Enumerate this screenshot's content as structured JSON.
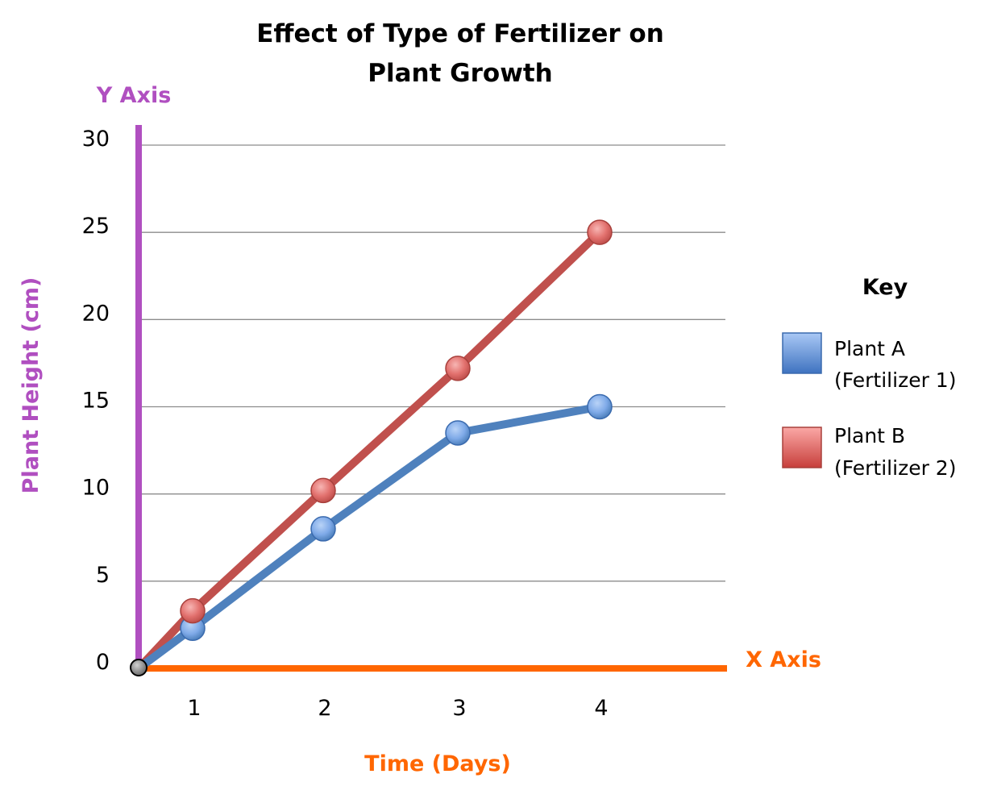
{
  "chart_data": {
    "type": "line",
    "title_lines": [
      "Effect of Type of Fertilizer on",
      "Plant Growth"
    ],
    "y_axis_name": "Y Axis",
    "x_axis_name": "X Axis",
    "ylabel": "Plant Height (cm)",
    "xlabel": "Time (Days)",
    "x_ticks": [
      "1",
      "2",
      "3",
      "4"
    ],
    "y_ticks": [
      "0",
      "5",
      "10",
      "15",
      "20",
      "25",
      "30"
    ],
    "ylim": [
      0,
      30
    ],
    "grid": true,
    "legend_title": "Key",
    "legend_position": "right",
    "series": [
      {
        "name_lines": [
          "Plant A",
          "(Fertilizer 1)"
        ],
        "x": [
          0,
          1,
          2,
          3,
          4
        ],
        "y": [
          0,
          2.3,
          8,
          13.5,
          15
        ],
        "color": "#4F81BD"
      },
      {
        "name_lines": [
          "Plant B",
          "(Fertilizer 2)"
        ],
        "x": [
          0,
          1,
          2,
          3,
          4
        ],
        "y": [
          0,
          3.3,
          10.2,
          17.2,
          25
        ],
        "color": "#C0504D"
      }
    ],
    "colors": {
      "y_axis": "#B04FC0",
      "x_axis": "#FF6600",
      "grid": "#8C8C8C",
      "origin_marker": "#555555"
    }
  }
}
